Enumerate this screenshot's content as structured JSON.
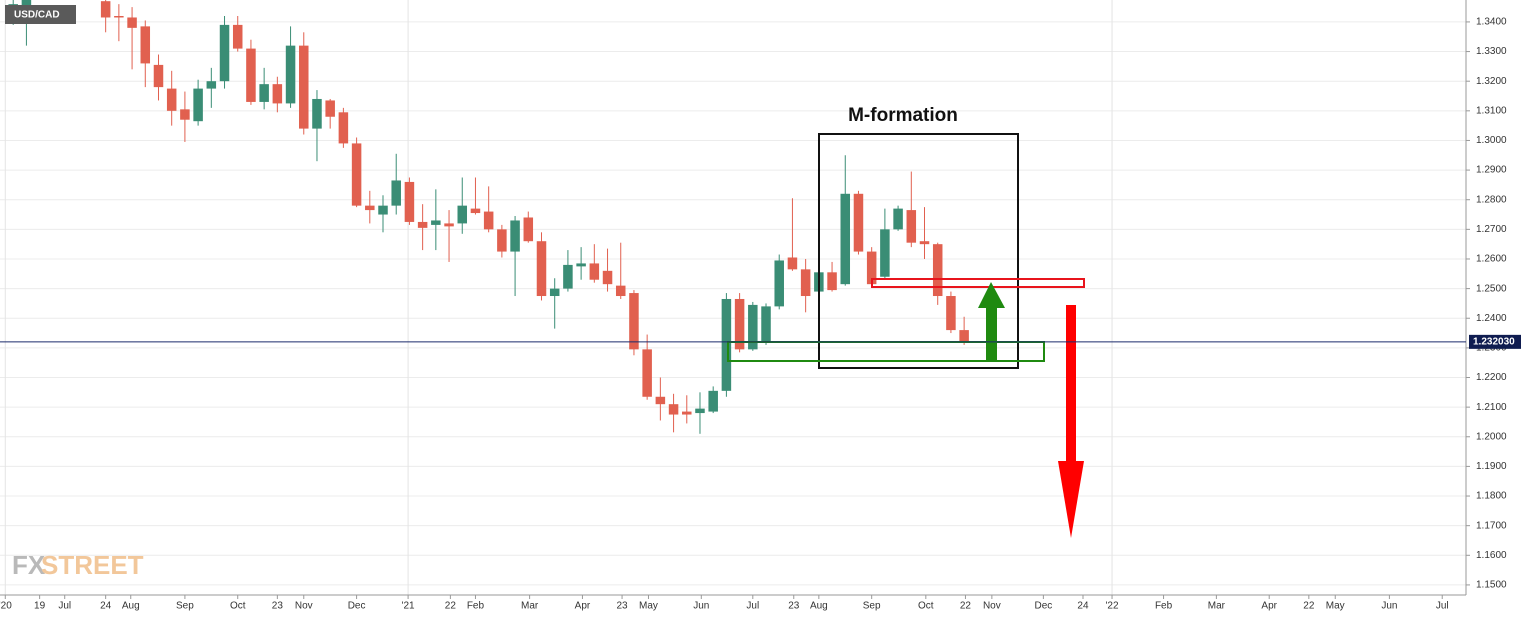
{
  "chart_data": {
    "type": "candlestick",
    "symbol": "USD/CAD",
    "annotation": "M-formation",
    "watermark_parts": [
      "FX",
      "STREET"
    ],
    "last_price": {
      "value": 1.23203,
      "label": "1.232030"
    },
    "up_color": "#3a8d75",
    "down_color": "#e1604f",
    "grid": true,
    "x": [
      1,
      2,
      8,
      9,
      10,
      11,
      12,
      13,
      14,
      15,
      16,
      17,
      18,
      19,
      20,
      21,
      22,
      23,
      24,
      25,
      26,
      27,
      28,
      29,
      30,
      31,
      32,
      33,
      34,
      35,
      36,
      37,
      38,
      39,
      40,
      41,
      42,
      43,
      44,
      45,
      46,
      47,
      48,
      49,
      50,
      51,
      52,
      53,
      54,
      55,
      56,
      57,
      58,
      59,
      60,
      61,
      62,
      63,
      64,
      65,
      66,
      67,
      68,
      69,
      70,
      71,
      72,
      73
    ],
    "open": [
      1.342,
      1.343,
      1.347,
      1.342,
      1.3415,
      1.3385,
      1.3255,
      1.3175,
      1.3105,
      1.3065,
      1.3175,
      1.32,
      1.339,
      1.331,
      1.313,
      1.319,
      1.3125,
      1.332,
      1.304,
      1.3135,
      1.3095,
      1.299,
      1.278,
      1.275,
      1.278,
      1.286,
      1.2725,
      1.2715,
      1.272,
      1.272,
      1.277,
      1.276,
      1.27,
      1.2625,
      1.274,
      1.266,
      1.2475,
      1.25,
      1.2575,
      1.2585,
      1.256,
      1.251,
      1.2485,
      1.2295,
      1.2135,
      1.211,
      1.2085,
      1.208,
      1.2085,
      1.2155,
      1.2465,
      1.2295,
      1.232,
      1.244,
      1.2605,
      1.2565,
      1.249,
      1.2555,
      1.2515,
      1.282,
      1.2625,
      1.254,
      1.27,
      1.2765,
      1.266,
      1.265,
      1.2475,
      1.236
    ],
    "high": [
      1.348,
      1.349,
      1.348,
      1.346,
      1.345,
      1.3405,
      1.329,
      1.3235,
      1.3165,
      1.3205,
      1.3245,
      1.342,
      1.342,
      1.334,
      1.3245,
      1.3215,
      1.3385,
      1.3365,
      1.317,
      1.314,
      1.311,
      1.301,
      1.283,
      1.2815,
      1.2955,
      1.2875,
      1.2785,
      1.2835,
      1.2765,
      1.2875,
      1.2875,
      1.2845,
      1.2715,
      1.2745,
      1.276,
      1.269,
      1.2535,
      1.263,
      1.264,
      1.265,
      1.2635,
      1.2655,
      1.2495,
      1.2345,
      1.22,
      1.2145,
      1.214,
      1.215,
      1.217,
      1.2485,
      1.2485,
      1.2455,
      1.245,
      1.2615,
      1.2805,
      1.26,
      1.257,
      1.259,
      1.295,
      1.283,
      1.264,
      1.277,
      1.278,
      1.2895,
      1.2775,
      1.2655,
      1.249,
      1.2405
    ],
    "low": [
      1.339,
      1.332,
      1.3365,
      1.3335,
      1.324,
      1.318,
      1.3135,
      1.305,
      1.2995,
      1.305,
      1.311,
      1.3175,
      1.33,
      1.312,
      1.3105,
      1.3095,
      1.311,
      1.302,
      1.293,
      1.304,
      1.2975,
      1.2775,
      1.272,
      1.269,
      1.275,
      1.2715,
      1.263,
      1.263,
      1.259,
      1.2685,
      1.275,
      1.269,
      1.2605,
      1.2475,
      1.2655,
      1.246,
      1.2365,
      1.249,
      1.253,
      1.252,
      1.249,
      1.2465,
      1.2275,
      1.2125,
      1.2055,
      1.2015,
      1.2045,
      1.201,
      1.208,
      1.2135,
      1.2285,
      1.229,
      1.231,
      1.243,
      1.256,
      1.242,
      1.2475,
      1.249,
      1.251,
      1.2615,
      1.2505,
      1.253,
      1.2695,
      1.264,
      1.26,
      1.2445,
      1.235,
      1.231
    ],
    "close": [
      1.346,
      1.348,
      1.3415,
      1.3415,
      1.338,
      1.326,
      1.318,
      1.31,
      1.307,
      1.3175,
      1.32,
      1.339,
      1.331,
      1.313,
      1.319,
      1.3125,
      1.332,
      1.304,
      1.314,
      1.308,
      1.299,
      1.278,
      1.2765,
      1.278,
      1.2865,
      1.2725,
      1.2705,
      1.273,
      1.271,
      1.278,
      1.2755,
      1.27,
      1.2625,
      1.273,
      1.266,
      1.2475,
      1.25,
      1.258,
      1.2585,
      1.253,
      1.2515,
      1.2475,
      1.2295,
      1.2135,
      1.211,
      1.2075,
      1.2075,
      1.2095,
      1.2155,
      1.2465,
      1.2295,
      1.2445,
      1.244,
      1.2595,
      1.2565,
      1.2475,
      1.2555,
      1.2495,
      1.282,
      1.2625,
      1.2515,
      1.27,
      1.277,
      1.2655,
      1.265,
      1.2475,
      1.236,
      1.232
    ],
    "xlim": [
      0,
      111
    ],
    "xticks": [
      {
        "value": 0.4,
        "label": "'20"
      },
      {
        "value": 3,
        "label": "19"
      },
      {
        "value": 4.9,
        "label": "Jul"
      },
      {
        "value": 8,
        "label": "24"
      },
      {
        "value": 9.9,
        "label": "Aug"
      },
      {
        "value": 14,
        "label": "Sep"
      },
      {
        "value": 18,
        "label": "Oct"
      },
      {
        "value": 21,
        "label": "23"
      },
      {
        "value": 23,
        "label": "Nov"
      },
      {
        "value": 27,
        "label": "Dec"
      },
      {
        "value": 30.9,
        "label": "'21"
      },
      {
        "value": 34.1,
        "label": "22"
      },
      {
        "value": 36,
        "label": "Feb"
      },
      {
        "value": 40.1,
        "label": "Mar"
      },
      {
        "value": 44.1,
        "label": "Apr"
      },
      {
        "value": 47.1,
        "label": "23"
      },
      {
        "value": 49.1,
        "label": "May"
      },
      {
        "value": 53.1,
        "label": "Jun"
      },
      {
        "value": 57,
        "label": "Jul"
      },
      {
        "value": 60.1,
        "label": "23"
      },
      {
        "value": 62,
        "label": "Aug"
      },
      {
        "value": 66,
        "label": "Sep"
      },
      {
        "value": 70.1,
        "label": "Oct"
      },
      {
        "value": 73.1,
        "label": "22"
      },
      {
        "value": 75.1,
        "label": "Nov"
      },
      {
        "value": 79,
        "label": "Dec"
      },
      {
        "value": 82,
        "label": "24"
      },
      {
        "value": 84.2,
        "label": "'22"
      },
      {
        "value": 88.1,
        "label": "Feb"
      },
      {
        "value": 92.1,
        "label": "Mar"
      },
      {
        "value": 96.1,
        "label": "Apr"
      },
      {
        "value": 99.1,
        "label": "22"
      },
      {
        "value": 101.1,
        "label": "May"
      },
      {
        "value": 105.2,
        "label": "Jun"
      },
      {
        "value": 109.2,
        "label": "Jul"
      }
    ],
    "ylim": [
      1.1466,
      1.3474
    ],
    "yticks": [
      {
        "value": 1.15,
        "label": "1.1500"
      },
      {
        "value": 1.16,
        "label": "1.1600"
      },
      {
        "value": 1.17,
        "label": "1.1700"
      },
      {
        "value": 1.18,
        "label": "1.1800"
      },
      {
        "value": 1.19,
        "label": "1.1900"
      },
      {
        "value": 1.2,
        "label": "1.2000"
      },
      {
        "value": 1.21,
        "label": "1.2100"
      },
      {
        "value": 1.22,
        "label": "1.2200"
      },
      {
        "value": 1.23,
        "label": "1.2300"
      },
      {
        "value": 1.24,
        "label": "1.2400"
      },
      {
        "value": 1.25,
        "label": "1.2500"
      },
      {
        "value": 1.26,
        "label": "1.2600"
      },
      {
        "value": 1.27,
        "label": "1.2700"
      },
      {
        "value": 1.28,
        "label": "1.2800"
      },
      {
        "value": 1.29,
        "label": "1.2900"
      },
      {
        "value": 1.3,
        "label": "1.3000"
      },
      {
        "value": 1.31,
        "label": "1.3100"
      },
      {
        "value": 1.32,
        "label": "1.3200"
      },
      {
        "value": 1.33,
        "label": "1.3300"
      },
      {
        "value": 1.34,
        "label": "1.3400"
      }
    ]
  }
}
